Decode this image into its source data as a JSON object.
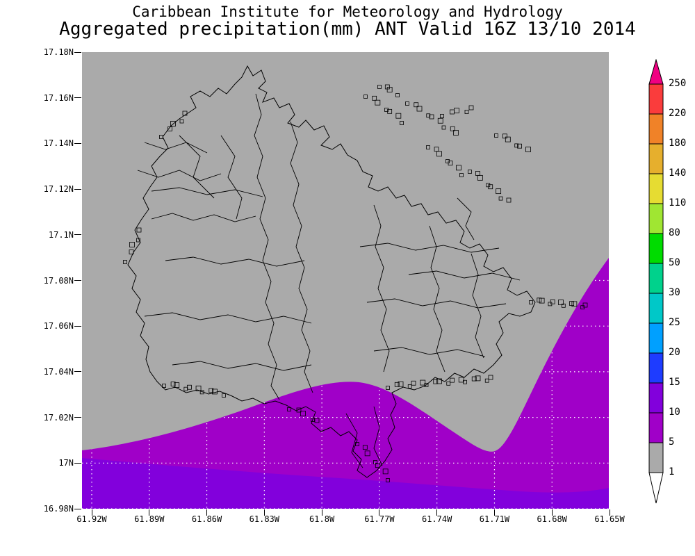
{
  "title": {
    "line1": "Caribbean Institute for Meteorology and Hydrology",
    "line2": "Aggregated precipitation(mm) ANT Valid 16Z 13/10 2014"
  },
  "axes": {
    "lat_labels": [
      "17.18N",
      "17.16N",
      "17.14N",
      "17.12N",
      "17.1N",
      "17.08N",
      "17.06N",
      "17.04N",
      "17.02N",
      "17N",
      "16.98N"
    ],
    "lon_labels": [
      "61.92W",
      "61.89W",
      "61.86W",
      "61.83W",
      "61.8W",
      "61.77W",
      "61.74W",
      "61.71W",
      "61.68W",
      "61.65W"
    ]
  },
  "colorbar": {
    "levels_top_to_bottom": [
      "250",
      "220",
      "180",
      "140",
      "110",
      "80",
      "50",
      "30",
      "25",
      "20",
      "15",
      "10",
      "5",
      "1"
    ],
    "segment_colors_top_to_bottom": [
      "#F00082",
      "#FA3C3C",
      "#F08228",
      "#E6AF2D",
      "#E6DC32",
      "#A0E632",
      "#00DC00",
      "#00D28C",
      "#00C8C8",
      "#00A0FF",
      "#1E3CFF",
      "#8200DC",
      "#A000C8",
      "#AAAAAA",
      "#FFFFFF"
    ]
  },
  "shading": {
    "background_color": "#AAAAAA",
    "band_5_10_color": "#A000C8",
    "band_10_15_color": "#8200DC",
    "gridline_color": "#FFFFFF",
    "line_color": "#000000"
  },
  "chart_data": {
    "type": "filled-contour-map",
    "variable": "Aggregated precipitation (mm)",
    "region": "ANT",
    "valid_time": "16Z 13/10 2014",
    "lat_range": [
      "16.98N",
      "17.18N"
    ],
    "lon_range": [
      "61.92W",
      "61.65W"
    ],
    "contour_levels_mm": [
      1,
      5,
      10,
      15,
      20,
      25,
      30,
      50,
      80,
      110,
      140,
      180,
      220,
      250
    ],
    "depicted_bands": [
      {
        "value_mm": "1-5",
        "color": "#AAAAAA",
        "area": "most of domain including island interior"
      },
      {
        "value_mm": "5-10",
        "color": "#A000C8",
        "area": "southern strip of domain, southern island coast, rising along the southeast/east edge"
      },
      {
        "value_mm": "10-15",
        "color": "#8200DC",
        "area": "far southern edge of domain"
      }
    ]
  }
}
